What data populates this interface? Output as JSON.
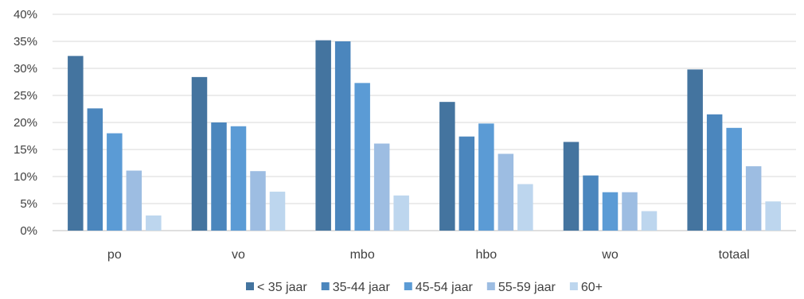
{
  "chart_data": {
    "type": "bar",
    "categories": [
      "po",
      "vo",
      "mbo",
      "hbo",
      "wo",
      "totaal"
    ],
    "series": [
      {
        "name": "< 35 jaar",
        "color": "#44749f",
        "values": [
          32.3,
          28.4,
          35.2,
          23.8,
          16.4,
          29.8
        ]
      },
      {
        "name": "35-44 jaar",
        "color": "#4b86bd",
        "values": [
          22.6,
          20.0,
          35.0,
          17.4,
          10.2,
          21.5
        ]
      },
      {
        "name": "45-54 jaar",
        "color": "#5b9bd5",
        "values": [
          18.0,
          19.3,
          27.3,
          19.8,
          7.1,
          19.0
        ]
      },
      {
        "name": "55-59 jaar",
        "color": "#9dbde2",
        "values": [
          11.1,
          11.0,
          16.1,
          14.2,
          7.1,
          11.9
        ]
      },
      {
        "name": "60+",
        "color": "#bdd6ee",
        "values": [
          2.8,
          7.2,
          6.5,
          8.6,
          3.6,
          5.4
        ]
      }
    ],
    "ylim": [
      0,
      40
    ],
    "yticks": [
      "0%",
      "5%",
      "10%",
      "15%",
      "20%",
      "25%",
      "30%",
      "35%",
      "40%"
    ],
    "grid": true,
    "legend_position": "bottom"
  }
}
